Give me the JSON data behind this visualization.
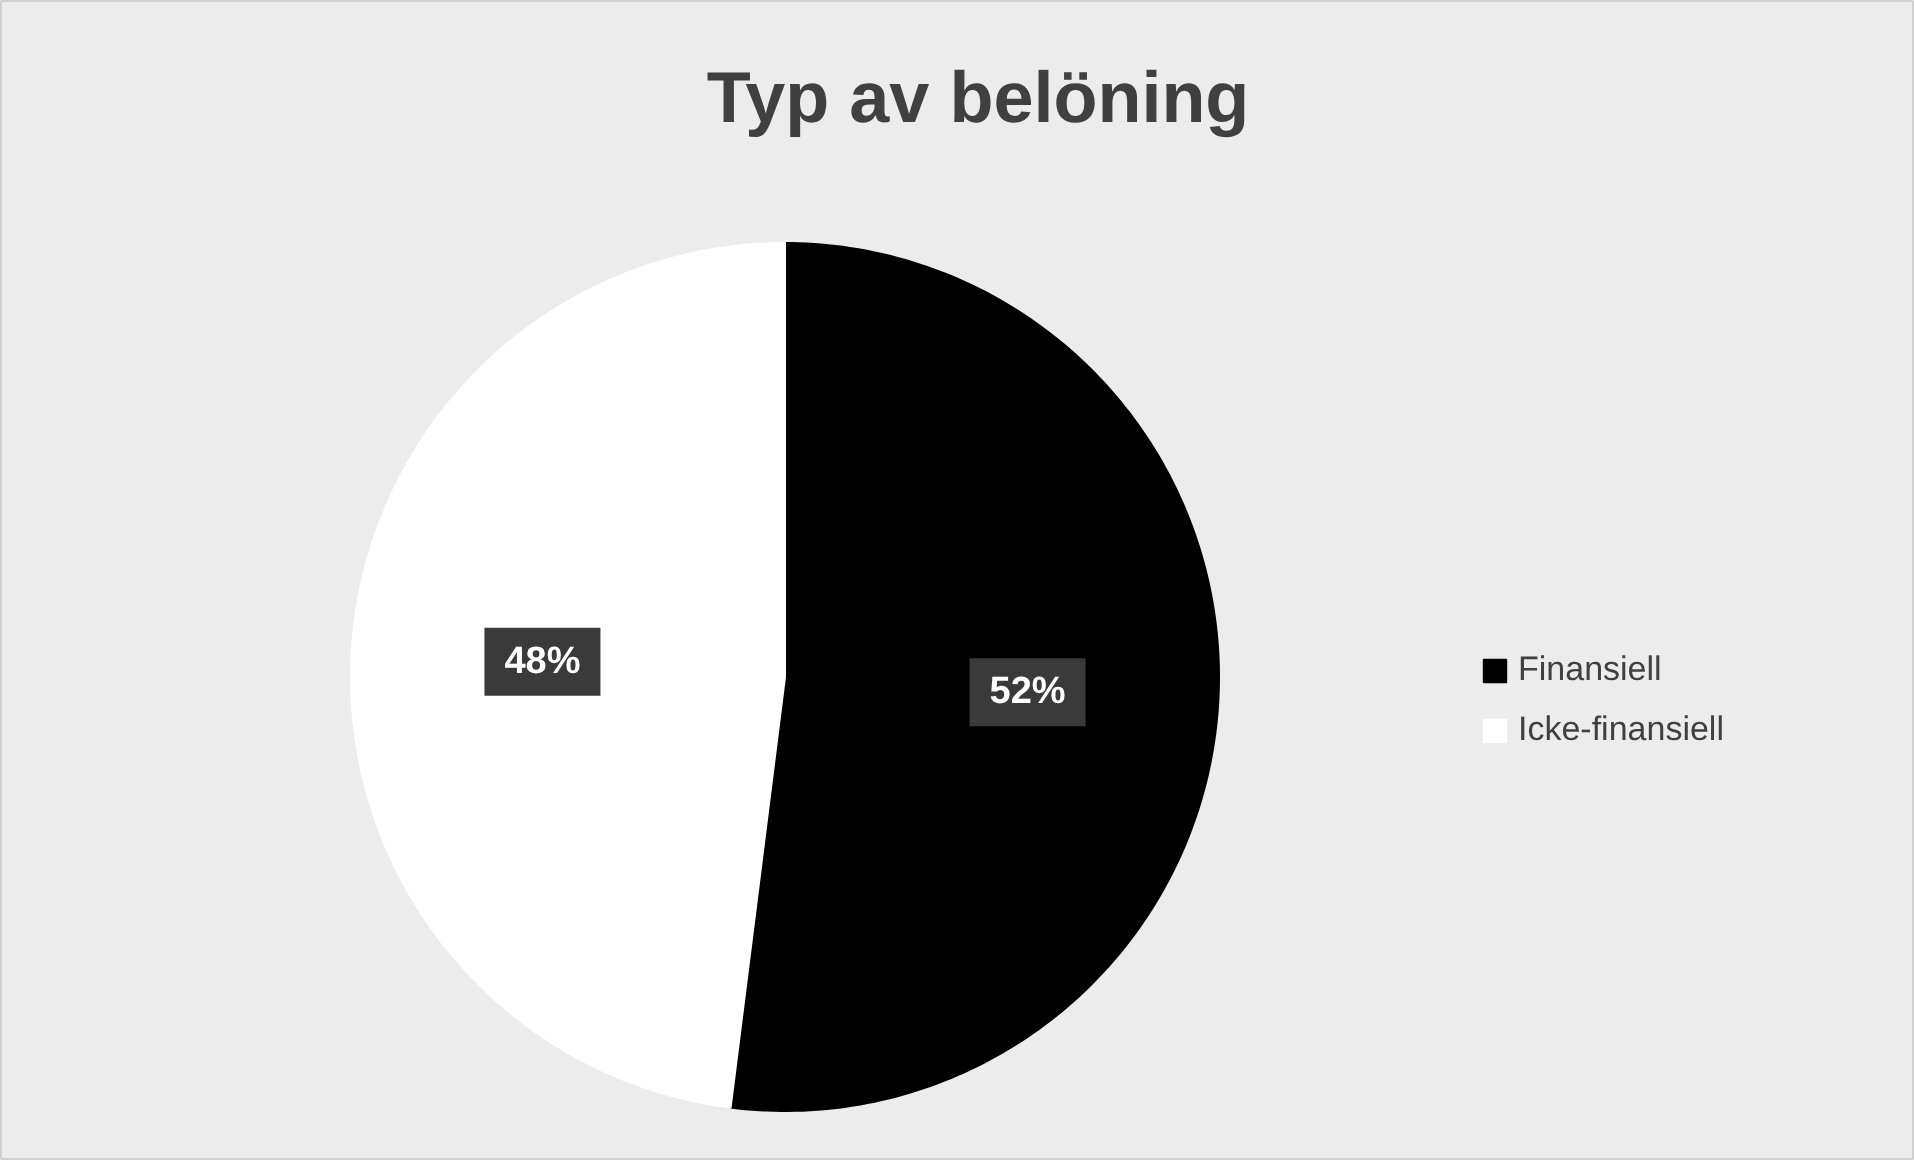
{
  "chart_data": {
    "type": "pie",
    "title": "Typ av belöning",
    "categories": [
      "Finansiell",
      "Icke-finansiell"
    ],
    "values": [
      52,
      48
    ],
    "value_labels": [
      "52%",
      "48%"
    ],
    "colors": [
      "#000000",
      "#ffffff"
    ],
    "legend": "right"
  }
}
